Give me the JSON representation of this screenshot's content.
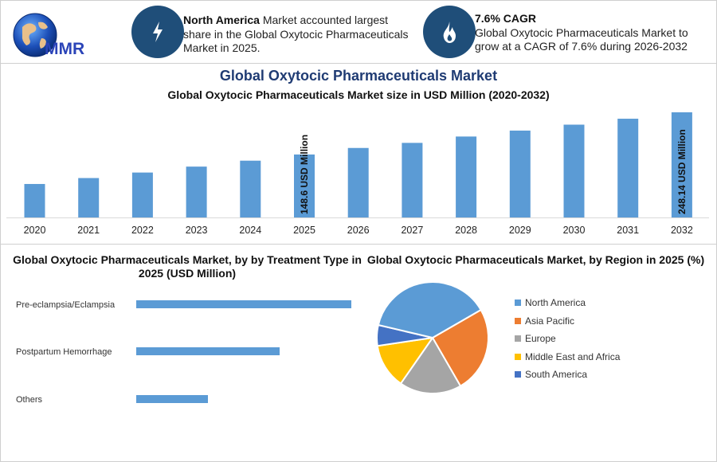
{
  "logo": {
    "text": "MMR"
  },
  "kpis": [
    {
      "icon": "lightning-icon",
      "bold": "North America",
      "rest": " Market accounted largest share in the Global Oxytocic Pharmaceuticals Market in 2025."
    },
    {
      "icon": "flame-drop-icon",
      "bold": "7.6% CAGR",
      "rest": "Global Oxytocic Pharmaceuticals Market to grow at a CAGR of 7.6% during 2026-2032"
    }
  ],
  "colors": {
    "bar": "#5b9bd5",
    "badge": "#1f4e79",
    "title": "#1f3b73"
  },
  "chart_data": [
    {
      "type": "bar",
      "title": "Global Oxytocic Pharmaceuticals Market",
      "subtitle": "Global Oxytocic Pharmaceuticals Market size in USD Million (2020-2032)",
      "categories": [
        "2020",
        "2021",
        "2022",
        "2023",
        "2024",
        "2025",
        "2026",
        "2027",
        "2028",
        "2029",
        "2030",
        "2031",
        "2032"
      ],
      "values": [
        79,
        93,
        106,
        120,
        134,
        148.6,
        164,
        176,
        191,
        205,
        219,
        233,
        248.14
      ],
      "data_labels": {
        "2025": "148.6 USD Million",
        "2032": "248.14 USD Million"
      },
      "ylim": [
        0,
        250
      ]
    },
    {
      "type": "bar",
      "orientation": "horizontal",
      "title": "Global Oxytocic Pharmaceuticals Market, by by Treatment Type in 2025 (USD Million)",
      "categories": [
        "Pre-eclampsia/Eclampsia",
        "Postpartum Hemorrhage",
        "Others"
      ],
      "values": [
        75,
        50,
        25
      ]
    },
    {
      "type": "pie",
      "title": "Global Oxytocic Pharmaceuticals Market, by Region in 2025 (%)",
      "legend_position": "right",
      "labels": [
        "North America",
        "Asia Pacific",
        "Europe",
        "Middle East and Africa",
        "South America"
      ],
      "values": [
        38,
        25,
        18,
        13,
        6
      ],
      "colors": [
        "#5b9bd5",
        "#ed7d31",
        "#a5a5a5",
        "#ffc000",
        "#4472c4"
      ]
    }
  ]
}
